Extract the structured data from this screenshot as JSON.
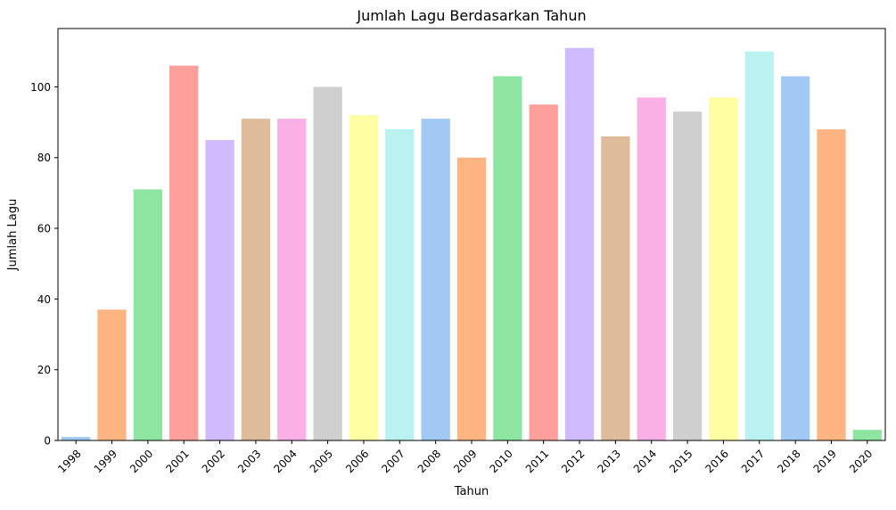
{
  "chart_data": {
    "type": "bar",
    "title": "Jumlah Lagu Berdasarkan Tahun",
    "xlabel": "Tahun",
    "ylabel": "Jumlah Lagu",
    "categories": [
      "1998",
      "1999",
      "2000",
      "2001",
      "2002",
      "2003",
      "2004",
      "2005",
      "2006",
      "2007",
      "2008",
      "2009",
      "2010",
      "2011",
      "2012",
      "2013",
      "2014",
      "2015",
      "2016",
      "2017",
      "2018",
      "2019",
      "2020"
    ],
    "values": [
      1,
      37,
      71,
      106,
      85,
      91,
      91,
      100,
      92,
      88,
      91,
      80,
      103,
      95,
      111,
      86,
      97,
      93,
      97,
      110,
      103,
      88,
      3
    ],
    "ylim": [
      0,
      116.5
    ],
    "yticks": [
      0,
      20,
      40,
      60,
      80,
      100
    ],
    "grid": false,
    "legend": "none",
    "palette": [
      "#a1c9f4",
      "#ffb482",
      "#8de5a1",
      "#ff9f9b",
      "#d0bbff",
      "#debb9b",
      "#fab0e4",
      "#cfcfcf",
      "#fffea3",
      "#b9f2f0"
    ]
  }
}
